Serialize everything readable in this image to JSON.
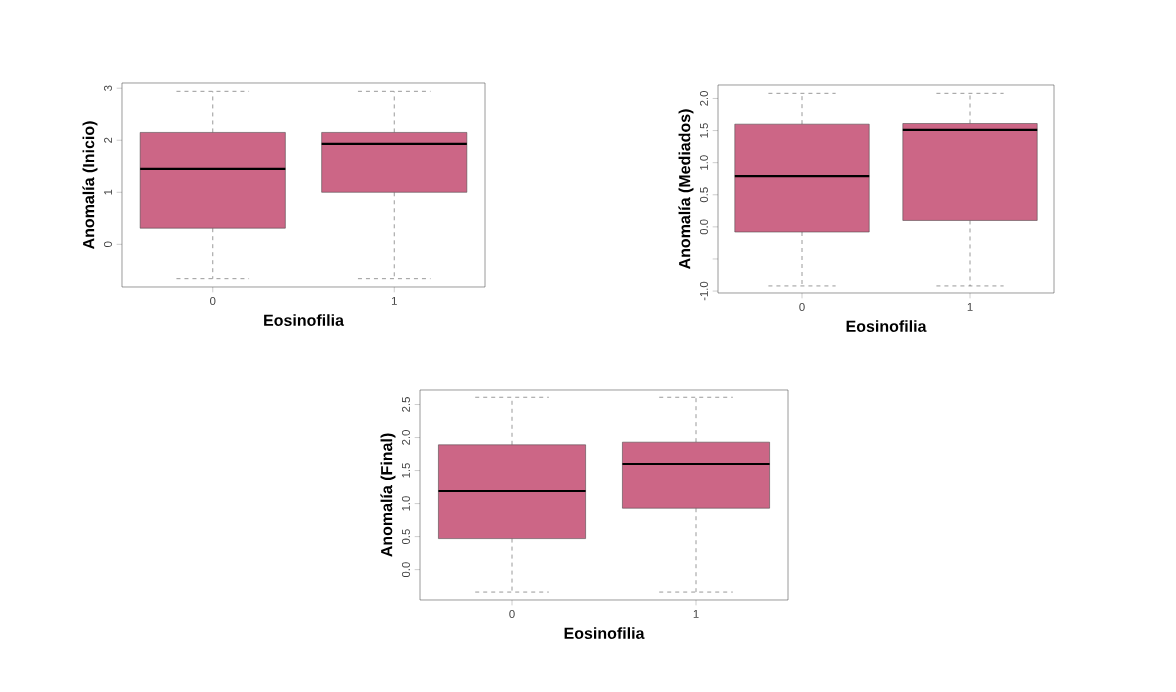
{
  "chart_data": [
    {
      "type": "box",
      "categories": [
        "0",
        "1"
      ],
      "xlabel": "Eosinofilia",
      "ylabel": "Anomalía (Inicio)",
      "color": "#cc6686",
      "boxes": [
        {
          "low": -0.66,
          "q1": 0.31,
          "median": 1.45,
          "q3": 2.15,
          "high": 2.94
        },
        {
          "low": -0.66,
          "q1": 1.0,
          "median": 1.93,
          "q3": 2.15,
          "high": 2.94
        }
      ],
      "ylim": [
        -0.82,
        3.1
      ],
      "yticks": [
        0,
        1,
        2,
        3
      ],
      "grid": false
    },
    {
      "type": "box",
      "categories": [
        "0",
        "1"
      ],
      "xlabel": "Eosinofilia",
      "ylabel": "Anomalía (Mediados)",
      "color": "#cc6686",
      "boxes": [
        {
          "low": -0.92,
          "q1": -0.08,
          "median": 0.79,
          "q3": 1.6,
          "high": 2.08
        },
        {
          "low": -0.92,
          "q1": 0.1,
          "median": 1.51,
          "q3": 1.61,
          "high": 2.08
        }
      ],
      "ylim": [
        -1.03,
        2.21
      ],
      "yticks": [
        {
          "value": -1.0,
          "label": "-1.0"
        },
        {
          "value": -0.5,
          "label": null
        },
        {
          "value": 0,
          "label": "0.0"
        },
        0.5,
        {
          "value": 1,
          "label": "1.0"
        },
        1.5,
        {
          "value": 2,
          "label": "2.0"
        }
      ],
      "grid": false
    },
    {
      "type": "box",
      "categories": [
        "0",
        "1"
      ],
      "xlabel": "Eosinofilia",
      "ylabel": "Anomalía (Final)",
      "color": "#cc6686",
      "boxes": [
        {
          "low": -0.34,
          "q1": 0.47,
          "median": 1.19,
          "q3": 1.89,
          "high": 2.61
        },
        {
          "low": -0.34,
          "q1": 0.93,
          "median": 1.6,
          "q3": 1.93,
          "high": 2.61
        }
      ],
      "ylim": [
        -0.46,
        2.72
      ],
      "yticks": [
        {
          "value": 0,
          "label": "0.0"
        },
        0.5,
        {
          "value": 1,
          "label": "1.0"
        },
        1.5,
        {
          "value": 2,
          "label": "2.0"
        },
        2.5
      ],
      "grid": false
    }
  ]
}
